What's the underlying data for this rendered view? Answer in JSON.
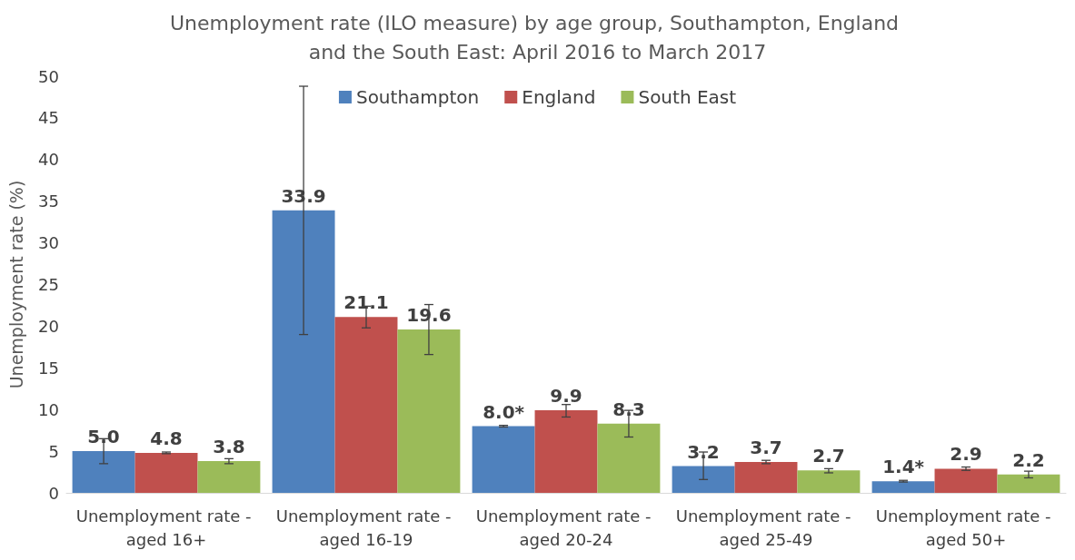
{
  "chart_data": {
    "type": "bar",
    "title": "Unemployment rate (ILO measure) by age group, Southampton, England and the South East: April 2016 to March 2017",
    "ylabel": "Unemployment rate (%)",
    "categories": [
      "Unemployment rate - aged 16+",
      "Unemployment rate - aged 16-19",
      "Unemployment rate - aged 20-24",
      "Unemployment rate - aged 25-49",
      "Unemployment rate - aged 50+"
    ],
    "series": [
      {
        "name": "Southampton",
        "color": "#4f81bd",
        "values": [
          5.0,
          33.9,
          8.0,
          3.2,
          1.4
        ],
        "value_labels": [
          "5.0",
          "33.9",
          "8.0*",
          "3.2",
          "1.4*"
        ],
        "errors": [
          [
            3.5,
            6.5
          ],
          [
            19.0,
            48.8
          ],
          [
            7.9,
            8.1
          ],
          [
            1.6,
            4.9
          ],
          [
            1.3,
            1.5
          ]
        ]
      },
      {
        "name": "England",
        "color": "#c0504d",
        "values": [
          4.8,
          21.1,
          9.9,
          3.7,
          2.9
        ],
        "value_labels": [
          "4.8",
          "21.1",
          "9.9",
          "3.7",
          "2.9"
        ],
        "errors": [
          [
            4.7,
            4.9
          ],
          [
            19.8,
            22.4
          ],
          [
            9.1,
            10.6
          ],
          [
            3.5,
            3.9
          ],
          [
            2.7,
            3.1
          ]
        ]
      },
      {
        "name": "South East",
        "color": "#9bbb59",
        "values": [
          3.8,
          19.6,
          8.3,
          2.7,
          2.2
        ],
        "value_labels": [
          "3.8",
          "19.6",
          "8.3",
          "2.7",
          "2.2"
        ],
        "errors": [
          [
            3.5,
            4.1
          ],
          [
            16.6,
            22.6
          ],
          [
            6.7,
            9.9
          ],
          [
            2.4,
            2.9
          ],
          [
            1.8,
            2.6
          ]
        ]
      }
    ],
    "ylim": [
      0,
      50
    ],
    "yticks": [
      0,
      5,
      10,
      15,
      20,
      25,
      30,
      35,
      40,
      45,
      50
    ],
    "grid": false,
    "legend": "top"
  }
}
